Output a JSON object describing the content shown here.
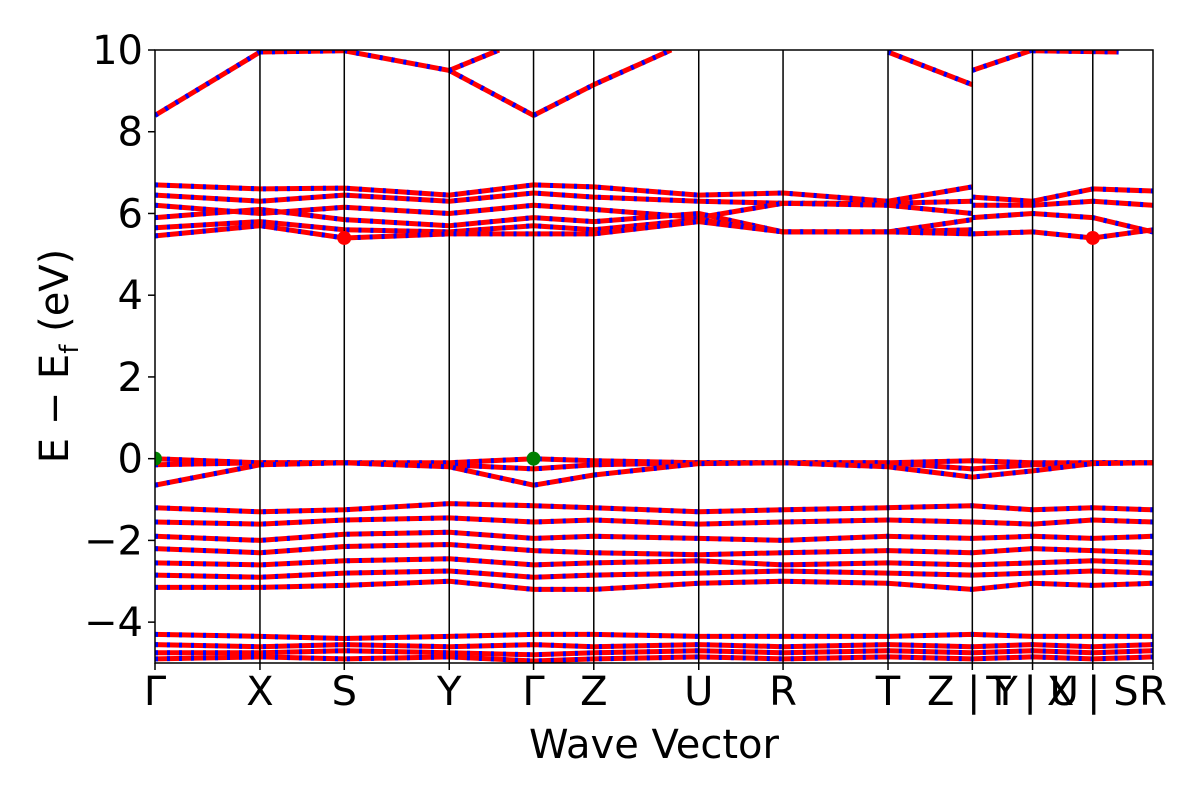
{
  "chart_data": {
    "type": "line",
    "title": "",
    "xlabel": "Wave Vector",
    "ylabel_main": "E − E",
    "ylabel_sub": "f",
    "ylabel_unit": " (eV)",
    "ylim": [
      -5,
      10
    ],
    "yticks": [
      -4,
      -2,
      0,
      2,
      4,
      6,
      8,
      10
    ],
    "ytick_labels": [
      "−4",
      "−2",
      "0",
      "2",
      "4",
      "6",
      "8",
      "10"
    ],
    "xlim": [
      0,
      11.6
    ],
    "kpoints": [
      {
        "label": "Γ",
        "x": 0.0
      },
      {
        "label": "X",
        "x": 1.22
      },
      {
        "label": "S",
        "x": 2.2
      },
      {
        "label": "Y",
        "x": 3.42
      },
      {
        "label": "Γ",
        "x": 4.4
      },
      {
        "label": "Z",
        "x": 5.1
      },
      {
        "label": "U",
        "x": 6.32
      },
      {
        "label": "R",
        "x": 7.3
      },
      {
        "label": "T",
        "x": 8.52
      },
      {
        "label": "Z | Y",
        "x": 9.5
      },
      {
        "label": "T | U",
        "x": 10.2
      },
      {
        "label": "X | S",
        "x": 10.9
      },
      {
        "label": "R",
        "x": 11.6
      }
    ],
    "special_points": [
      {
        "kind": "cbm",
        "color": "#ff0000",
        "x": 2.2,
        "y": 5.4
      },
      {
        "kind": "cbm",
        "color": "#ff0000",
        "x": 10.9,
        "y": 5.4
      },
      {
        "kind": "vbm",
        "color": "#008000",
        "x": 0.0,
        "y": 0.0
      },
      {
        "kind": "vbm",
        "color": "#008000",
        "x": 4.4,
        "y": 0.0
      }
    ],
    "series": [
      {
        "color": "#ff0000",
        "x": [
          0,
          1.22
        ],
        "y": [
          8.4,
          9.95
        ]
      },
      {
        "color": "#ff0000",
        "x": [
          1.22,
          2.2
        ],
        "y": [
          9.95,
          9.98
        ]
      },
      {
        "color": "#ff0000",
        "x": [
          2.2,
          3.42
        ],
        "y": [
          9.98,
          9.5
        ]
      },
      {
        "color": "#ff0000",
        "x": [
          3.42,
          4.4,
          5.1,
          6.0
        ],
        "y": [
          9.5,
          8.4,
          9.15,
          10.0
        ]
      },
      {
        "color": "#ff0000",
        "x": [
          3.42,
          4.0
        ],
        "y": [
          9.5,
          10.0
        ]
      },
      {
        "color": "#ff0000",
        "x": [
          8.52,
          9.5
        ],
        "y": [
          9.95,
          9.15
        ]
      },
      {
        "color": "#ff0000",
        "x": [
          9.5,
          10.2
        ],
        "y": [
          9.5,
          10.0
        ]
      },
      {
        "color": "#ff0000",
        "x": [
          10.2,
          11.2
        ],
        "y": [
          9.98,
          9.95
        ]
      },
      {
        "color": "#ff0000",
        "x": [
          0,
          1.22,
          2.2,
          3.42,
          4.4,
          5.1,
          6.32,
          7.3,
          8.52,
          9.5
        ],
        "y": [
          6.7,
          6.6,
          6.62,
          6.45,
          6.7,
          6.65,
          6.45,
          6.5,
          6.3,
          6.65
        ]
      },
      {
        "color": "#ff0000",
        "x": [
          0,
          1.22,
          2.2,
          3.42,
          4.4,
          5.1,
          6.32,
          7.3,
          8.52,
          9.5
        ],
        "y": [
          6.45,
          6.3,
          6.45,
          6.3,
          6.5,
          6.4,
          6.3,
          6.25,
          6.25,
          6.3
        ]
      },
      {
        "color": "#ff0000",
        "x": [
          0,
          1.22,
          2.2,
          3.42,
          4.4,
          5.1,
          6.32,
          7.3,
          8.52,
          9.5
        ],
        "y": [
          6.2,
          6.0,
          6.15,
          6.0,
          6.2,
          6.1,
          5.9,
          6.25,
          6.2,
          6.0
        ]
      },
      {
        "color": "#ff0000",
        "x": [
          0,
          1.22,
          2.2,
          3.42,
          4.4,
          5.1,
          6.32,
          7.3,
          8.52,
          9.5
        ],
        "y": [
          5.9,
          6.1,
          5.85,
          5.7,
          5.9,
          5.8,
          6.0,
          5.55,
          5.55,
          5.85
        ]
      },
      {
        "color": "#ff0000",
        "x": [
          0,
          1.22,
          2.2,
          3.42,
          4.4,
          5.1,
          6.32,
          7.3,
          8.52,
          9.5
        ],
        "y": [
          5.65,
          5.8,
          5.6,
          5.55,
          5.7,
          5.6,
          5.85,
          5.55,
          5.55,
          5.6
        ]
      },
      {
        "color": "#ff0000",
        "x": [
          0,
          1.22,
          2.2,
          3.42,
          4.4,
          5.1,
          6.32,
          7.3,
          8.52,
          9.5
        ],
        "y": [
          5.45,
          5.7,
          5.4,
          5.5,
          5.5,
          5.5,
          5.8,
          5.55,
          5.55,
          5.5
        ]
      },
      {
        "color": "#ff0000",
        "x": [
          9.5,
          10.2,
          10.9,
          11.6
        ],
        "y": [
          6.4,
          6.3,
          6.6,
          6.55
        ]
      },
      {
        "color": "#ff0000",
        "x": [
          9.5,
          10.2,
          10.9,
          11.6
        ],
        "y": [
          6.2,
          6.2,
          6.3,
          6.2
        ]
      },
      {
        "color": "#ff0000",
        "x": [
          9.5,
          10.2,
          10.9,
          11.6
        ],
        "y": [
          5.9,
          6.0,
          5.9,
          5.55
        ]
      },
      {
        "color": "#ff0000",
        "x": [
          9.5,
          10.2,
          10.9,
          11.6
        ],
        "y": [
          5.5,
          5.55,
          5.4,
          5.6
        ]
      },
      {
        "color": "#ff0000",
        "x": [
          0,
          1.22,
          2.2,
          3.42,
          4.4,
          5.1,
          6.32,
          7.3,
          8.52,
          9.5,
          10.2,
          10.9,
          11.6
        ],
        "y": [
          0.0,
          -0.1,
          -0.1,
          -0.1,
          0.0,
          -0.05,
          -0.1,
          -0.1,
          -0.1,
          -0.05,
          -0.1,
          -0.1,
          -0.1
        ]
      },
      {
        "color": "#ff0000",
        "x": [
          0,
          1.22,
          2.2,
          3.42,
          4.4,
          5.1,
          6.32,
          7.3,
          8.52,
          9.5,
          10.2,
          10.9,
          11.6
        ],
        "y": [
          -0.15,
          -0.1,
          -0.1,
          -0.15,
          -0.25,
          -0.15,
          -0.1,
          -0.1,
          -0.1,
          -0.25,
          -0.15,
          -0.1,
          -0.1
        ]
      },
      {
        "color": "#ff0000",
        "x": [
          0,
          1.22,
          2.2,
          3.42,
          4.4,
          5.1,
          6.32,
          7.3,
          8.52,
          9.5,
          10.2,
          10.9,
          11.6
        ],
        "y": [
          -0.65,
          -0.15,
          -0.1,
          -0.2,
          -0.65,
          -0.4,
          -0.12,
          -0.1,
          -0.2,
          -0.45,
          -0.3,
          -0.12,
          -0.1
        ]
      },
      {
        "color": "#ff0000",
        "x": [
          0,
          1.22,
          2.2,
          3.42,
          4.4,
          5.1,
          6.32,
          7.3,
          8.52,
          9.5,
          10.2,
          10.9,
          11.6
        ],
        "y": [
          -1.2,
          -1.3,
          -1.25,
          -1.1,
          -1.15,
          -1.2,
          -1.3,
          -1.25,
          -1.2,
          -1.15,
          -1.25,
          -1.2,
          -1.25
        ]
      },
      {
        "color": "#ff0000",
        "x": [
          0,
          1.22,
          2.2,
          3.42,
          4.4,
          5.1,
          6.32,
          7.3,
          8.52,
          9.5,
          10.2,
          10.9,
          11.6
        ],
        "y": [
          -1.55,
          -1.6,
          -1.5,
          -1.45,
          -1.55,
          -1.5,
          -1.6,
          -1.55,
          -1.5,
          -1.55,
          -1.6,
          -1.5,
          -1.55
        ]
      },
      {
        "color": "#ff0000",
        "x": [
          0,
          1.22,
          2.2,
          3.42,
          4.4,
          5.1,
          6.32,
          7.3,
          8.52,
          9.5,
          10.2,
          10.9,
          11.6
        ],
        "y": [
          -1.9,
          -2.0,
          -1.85,
          -1.8,
          -1.95,
          -1.9,
          -1.95,
          -2.0,
          -1.9,
          -1.95,
          -1.9,
          -1.95,
          -1.9
        ]
      },
      {
        "color": "#ff0000",
        "x": [
          0,
          1.22,
          2.2,
          3.42,
          4.4,
          5.1,
          6.32,
          7.3,
          8.52,
          9.5,
          10.2,
          10.9,
          11.6
        ],
        "y": [
          -2.2,
          -2.3,
          -2.15,
          -2.1,
          -2.25,
          -2.3,
          -2.35,
          -2.3,
          -2.25,
          -2.3,
          -2.2,
          -2.25,
          -2.3
        ]
      },
      {
        "color": "#ff0000",
        "x": [
          0,
          1.22,
          2.2,
          3.42,
          4.4,
          5.1,
          6.32,
          7.3,
          8.52,
          9.5,
          10.2,
          10.9,
          11.6
        ],
        "y": [
          -2.55,
          -2.6,
          -2.5,
          -2.45,
          -2.6,
          -2.55,
          -2.5,
          -2.6,
          -2.55,
          -2.6,
          -2.55,
          -2.5,
          -2.55
        ]
      },
      {
        "color": "#ff0000",
        "x": [
          0,
          1.22,
          2.2,
          3.42,
          4.4,
          5.1,
          6.32,
          7.3,
          8.52,
          9.5,
          10.2,
          10.9,
          11.6
        ],
        "y": [
          -2.85,
          -2.9,
          -2.8,
          -2.75,
          -2.9,
          -2.85,
          -2.8,
          -2.75,
          -2.8,
          -2.85,
          -2.8,
          -2.75,
          -2.8
        ]
      },
      {
        "color": "#ff0000",
        "x": [
          0,
          1.22,
          2.2,
          3.42,
          4.4,
          5.1,
          6.32,
          7.3,
          8.52,
          9.5,
          10.2,
          10.9,
          11.6
        ],
        "y": [
          -3.15,
          -3.15,
          -3.1,
          -3.0,
          -3.2,
          -3.2,
          -3.05,
          -3.0,
          -3.05,
          -3.2,
          -3.05,
          -3.1,
          -3.05
        ]
      },
      {
        "color": "#ff0000",
        "x": [
          0,
          1.22,
          2.2,
          3.42,
          4.4,
          5.1,
          6.32,
          7.3,
          8.52,
          9.5,
          10.2,
          10.9,
          11.6
        ],
        "y": [
          -4.3,
          -4.35,
          -4.4,
          -4.35,
          -4.3,
          -4.3,
          -4.35,
          -4.35,
          -4.35,
          -4.3,
          -4.35,
          -4.35,
          -4.35
        ]
      },
      {
        "color": "#ff0000",
        "x": [
          0,
          1.22,
          2.2,
          3.42,
          4.4,
          5.1,
          6.32,
          7.3,
          8.52,
          9.5,
          10.2,
          10.9,
          11.6
        ],
        "y": [
          -4.55,
          -4.6,
          -4.55,
          -4.6,
          -4.55,
          -4.6,
          -4.55,
          -4.6,
          -4.55,
          -4.6,
          -4.55,
          -4.6,
          -4.55
        ]
      },
      {
        "color": "#ff0000",
        "x": [
          0,
          1.22,
          2.2,
          3.42,
          4.4,
          5.1,
          6.32,
          7.3,
          8.52,
          9.5,
          10.2,
          10.9,
          11.6
        ],
        "y": [
          -4.75,
          -4.75,
          -4.7,
          -4.75,
          -4.8,
          -4.75,
          -4.7,
          -4.75,
          -4.7,
          -4.75,
          -4.7,
          -4.75,
          -4.7
        ]
      },
      {
        "color": "#ff0000",
        "x": [
          0,
          1.22,
          2.2,
          3.42,
          4.4,
          5.1,
          6.32,
          7.3,
          8.52,
          9.5,
          10.2,
          10.9,
          11.6
        ],
        "y": [
          -4.9,
          -4.85,
          -4.9,
          -4.85,
          -4.95,
          -4.9,
          -4.85,
          -4.9,
          -4.85,
          -4.9,
          -4.85,
          -4.9,
          -4.85
        ]
      }
    ]
  }
}
